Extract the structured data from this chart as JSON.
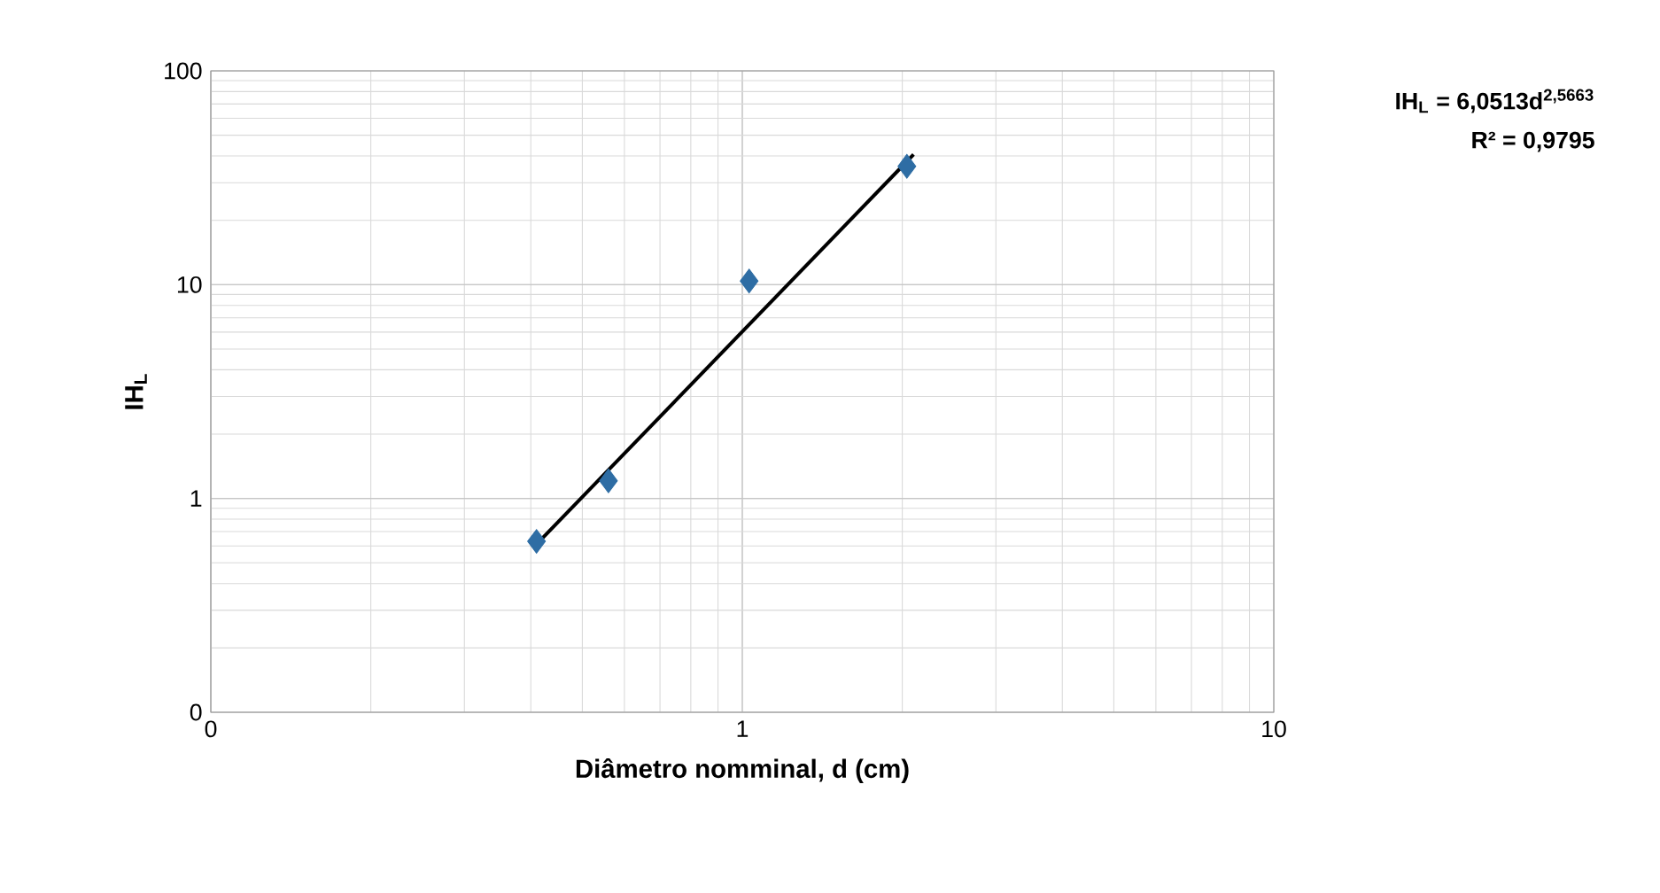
{
  "chart_data": {
    "type": "scatter",
    "log": "xy",
    "xlabel": "**Diâmetro nomminal, d (cm)**",
    "ylabel": "**IH$_{L}$**",
    "annotations": [
      "**IH$_{L}$ = 6,0513d$^{2,5663}$**",
      "**R² = 0,9795**"
    ],
    "xlim": [
      0.1,
      10
    ],
    "ylim": [
      0.1,
      100
    ],
    "xticks": [
      {
        "value": 0.1,
        "label": "0"
      },
      1,
      10
    ],
    "yticks": [
      {
        "value": 0.1,
        "label": "0"
      },
      1,
      10,
      100
    ],
    "grid": true,
    "series": [
      {
        "marker": "diamond",
        "color": "#2e6da4",
        "x": [
          0.41,
          0.56,
          1.03,
          2.04
        ],
        "values": [
          0.63,
          1.21,
          10.4,
          35.8
        ]
      },
      {
        "type": "line",
        "color": "#000000",
        "x": [
          0.41,
          2.1
        ],
        "values": [
          0.61,
          40.6
        ]
      }
    ]
  }
}
